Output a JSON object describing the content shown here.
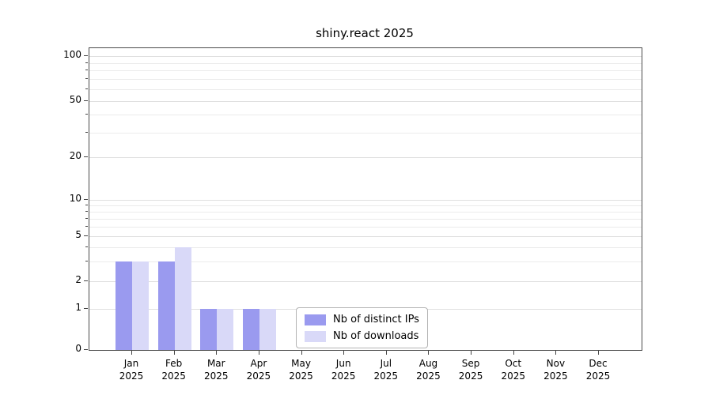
{
  "chart_data": {
    "type": "bar",
    "title": "shiny.react 2025",
    "categories": [
      "Jan",
      "Feb",
      "Mar",
      "Apr",
      "May",
      "Jun",
      "Jul",
      "Aug",
      "Sep",
      "Oct",
      "Nov",
      "Dec"
    ],
    "year": "2025",
    "series": [
      {
        "name": "Nb of distinct IPs",
        "color": "#9a9aef",
        "values": [
          3,
          3,
          1,
          1,
          0,
          0,
          0,
          0,
          0,
          0,
          0,
          0
        ]
      },
      {
        "name": "Nb of downloads",
        "color": "#d9d9f8",
        "values": [
          3,
          4,
          1,
          1,
          0,
          0,
          0,
          0,
          0,
          0,
          0,
          0
        ]
      }
    ],
    "yscale": "log",
    "ylim": [
      0,
      100
    ],
    "yticks": [
      0,
      1,
      2,
      5,
      10,
      20,
      50,
      100
    ],
    "minor_gridlines": [
      3,
      4,
      6,
      7,
      8,
      9,
      30,
      40,
      60,
      70,
      80,
      90
    ],
    "grid": true,
    "legend_position": "lower center"
  }
}
